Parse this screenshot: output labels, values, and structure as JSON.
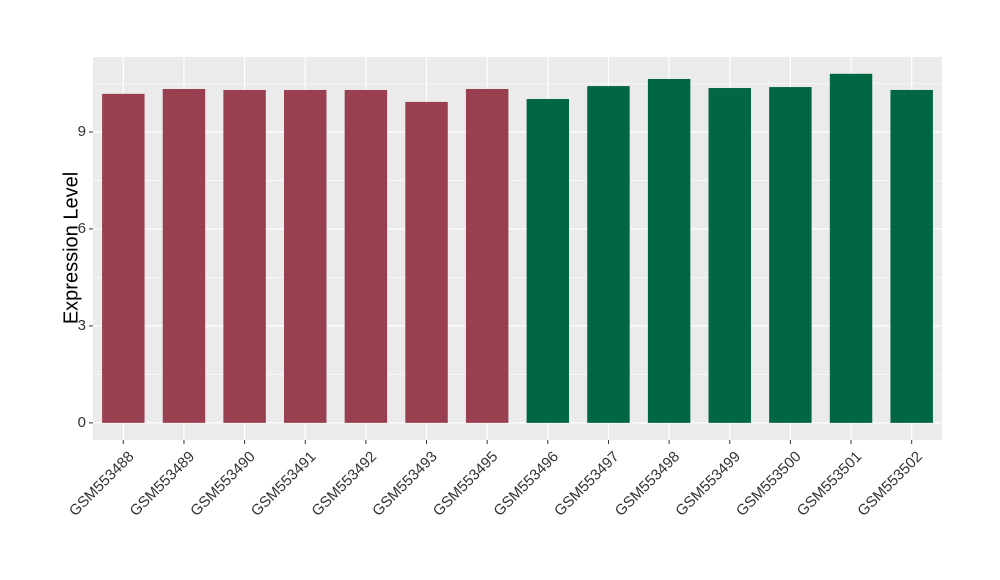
{
  "chart_data": {
    "type": "bar",
    "y_label": "Expression Level",
    "categories": [
      "GSM553488",
      "GSM553489",
      "GSM553490",
      "GSM553491",
      "GSM553492",
      "GSM553493",
      "GSM553495",
      "GSM553496",
      "GSM553497",
      "GSM553498",
      "GSM553499",
      "GSM553500",
      "GSM553501",
      "GSM553502"
    ],
    "values": [
      10.18,
      10.33,
      10.3,
      10.3,
      10.3,
      9.93,
      10.33,
      10.02,
      10.42,
      10.64,
      10.36,
      10.39,
      10.8,
      10.3
    ],
    "colors": [
      "#98404f",
      "#98404f",
      "#98404f",
      "#98404f",
      "#98404f",
      "#98404f",
      "#98404f",
      "#006743",
      "#006743",
      "#006743",
      "#006743",
      "#006743",
      "#006743",
      "#006743"
    ],
    "ylim": [
      -0.53,
      11.32
    ],
    "yticks": [
      0,
      3,
      6,
      9
    ],
    "grid": true
  }
}
